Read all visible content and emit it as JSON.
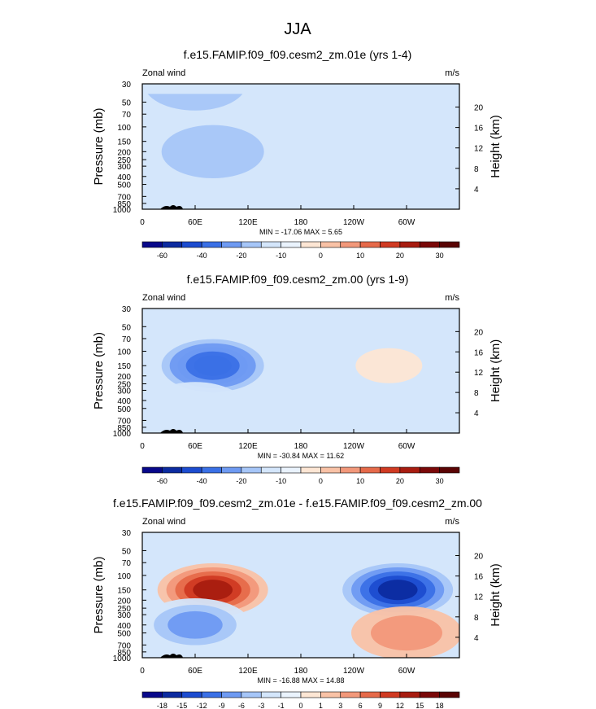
{
  "figure": {
    "title": "JJA"
  },
  "chart_data": [
    {
      "type": "heatmap",
      "title": "f.e15.FAMIP.f09_f09.cesm2_zm.01e (yrs 1-4)",
      "left_label": "Zonal wind",
      "units": "m/s",
      "ylabel": "Pressure (mb)",
      "ylabel_right": "Height (km)",
      "x_ticks": [
        "0",
        "60E",
        "120E",
        "180",
        "120W",
        "60W"
      ],
      "y_ticks": [
        "30",
        "50",
        "70",
        "100",
        "150",
        "200",
        "250",
        "300",
        "400",
        "500",
        "700",
        "850",
        "1000"
      ],
      "y_ticks_right": [
        "20",
        "16",
        "12",
        "8",
        "4"
      ],
      "stats": "MIN = -17.06  MAX =  5.65",
      "colorbar_labels": [
        "-60",
        "-40",
        "-20",
        "-10",
        "0",
        "10",
        "20",
        "30"
      ],
      "features": [
        {
          "lon": 20,
          "p": 700,
          "value": 4
        },
        {
          "lon": 80,
          "p": 200,
          "value": -5
        },
        {
          "lon": 240,
          "p": 100,
          "value": 2
        },
        {
          "lon": 60,
          "p": 30,
          "value": -3
        }
      ]
    },
    {
      "type": "heatmap",
      "title": "f.e15.FAMIP.f09_f09.cesm2_zm.00 (yrs 1-9)",
      "left_label": "Zonal wind",
      "units": "m/s",
      "ylabel": "Pressure (mb)",
      "ylabel_right": "Height (km)",
      "x_ticks": [
        "0",
        "60E",
        "120E",
        "180",
        "120W",
        "60W"
      ],
      "y_ticks": [
        "30",
        "50",
        "70",
        "100",
        "150",
        "200",
        "250",
        "300",
        "400",
        "500",
        "700",
        "850",
        "1000"
      ],
      "y_ticks_right": [
        "20",
        "16",
        "12",
        "8",
        "4"
      ],
      "stats": "MIN = -30.84  MAX = 11.62",
      "colorbar_labels": [
        "-60",
        "-40",
        "-20",
        "-10",
        "0",
        "10",
        "20",
        "30"
      ],
      "features": [
        {
          "lon": 80,
          "p": 150,
          "value": -30
        },
        {
          "lon": 280,
          "p": 150,
          "value": 11
        },
        {
          "lon": 60,
          "p": 500,
          "value": 6
        }
      ]
    },
    {
      "type": "heatmap",
      "title": "f.e15.FAMIP.f09_f09.cesm2_zm.01e - f.e15.FAMIP.f09_f09.cesm2_zm.00",
      "left_label": "Zonal wind",
      "units": "m/s",
      "ylabel": "Pressure (mb)",
      "ylabel_right": "Height (km)",
      "x_ticks": [
        "0",
        "60E",
        "120E",
        "180",
        "120W",
        "60W"
      ],
      "y_ticks": [
        "30",
        "50",
        "70",
        "100",
        "150",
        "200",
        "250",
        "300",
        "400",
        "500",
        "700",
        "850",
        "1000"
      ],
      "y_ticks_right": [
        "20",
        "16",
        "12",
        "8",
        "4"
      ],
      "stats": "MIN = -16.88  MAX = 14.88",
      "colorbar_labels": [
        "-18",
        "-15",
        "-12",
        "-9",
        "-6",
        "-3",
        "-1",
        "0",
        "1",
        "3",
        "6",
        "9",
        "12",
        "15",
        "18"
      ],
      "features": [
        {
          "lon": 80,
          "p": 150,
          "value": 14
        },
        {
          "lon": 290,
          "p": 150,
          "value": -16
        },
        {
          "lon": 60,
          "p": 400,
          "value": -8
        },
        {
          "lon": 300,
          "p": 500,
          "value": 5
        }
      ]
    }
  ]
}
